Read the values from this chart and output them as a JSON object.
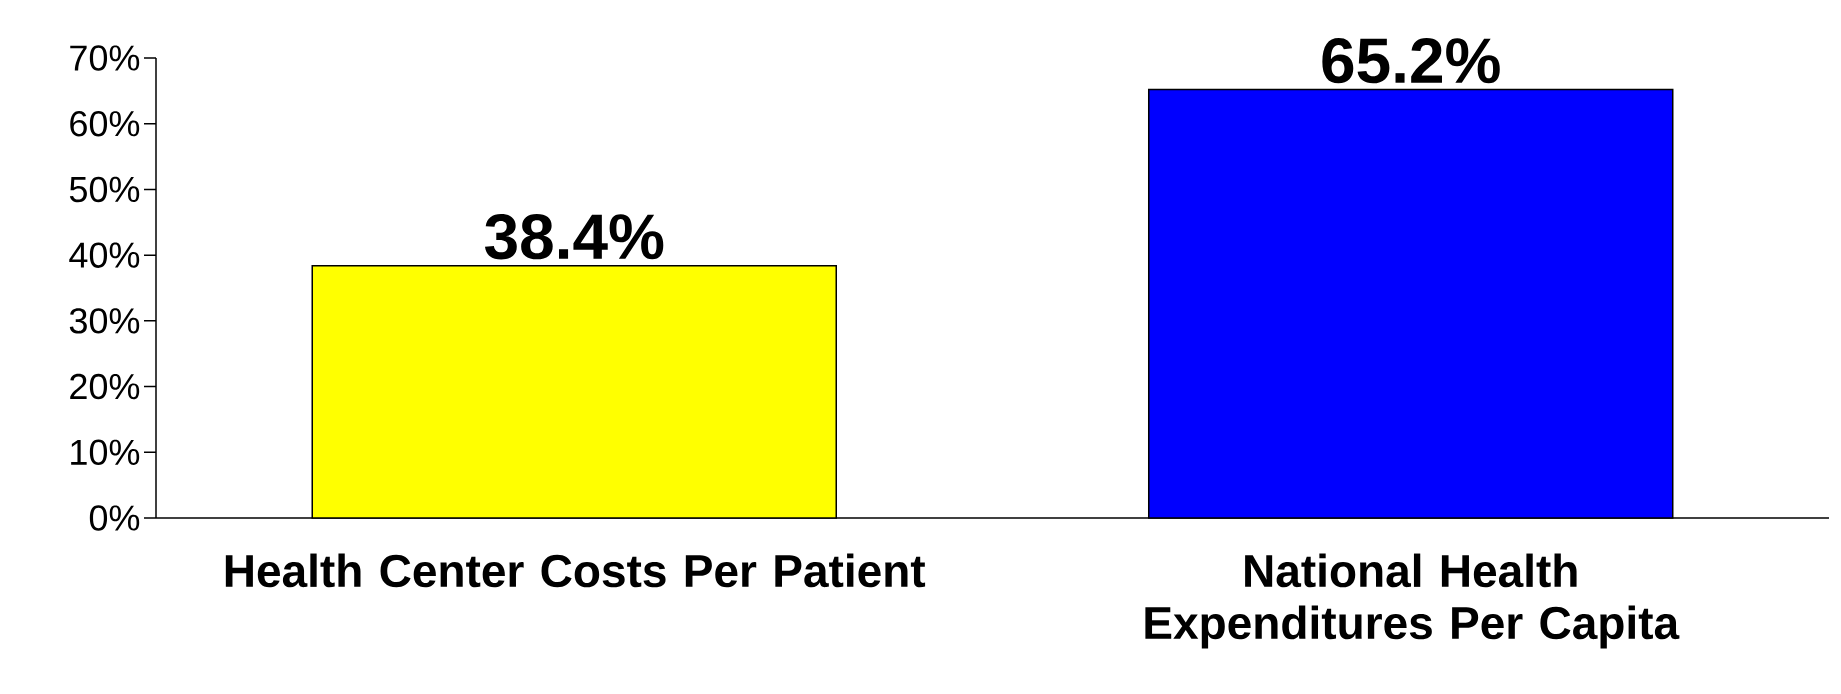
{
  "chart_data": {
    "type": "bar",
    "categories": [
      "Health Center Costs Per Patient",
      "National Health Expenditures Per Capita"
    ],
    "values": [
      38.4,
      65.2
    ],
    "colors": [
      "#ffff00",
      "#0000ff"
    ],
    "value_labels": [
      "38.4%",
      "65.2%"
    ],
    "ylim": [
      0,
      70
    ],
    "yticks": [
      {
        "value": 0,
        "label": "0%"
      },
      {
        "value": 10,
        "label": "10%"
      },
      {
        "value": 20,
        "label": "20%"
      },
      {
        "value": 30,
        "label": "30%"
      },
      {
        "value": 40,
        "label": "40%"
      },
      {
        "value": 50,
        "label": "50%"
      },
      {
        "value": 60,
        "label": "60%"
      },
      {
        "value": 70,
        "label": "70%"
      }
    ]
  }
}
